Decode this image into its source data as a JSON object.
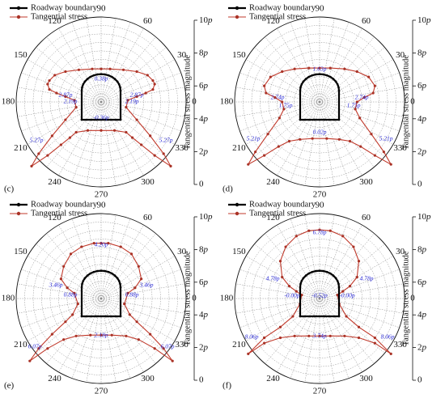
{
  "legend": {
    "roadway": "Roadway boundary",
    "stress": "Tangential stress"
  },
  "angles": [
    "0",
    "30",
    "60",
    "90",
    "120",
    "150",
    "180",
    "210",
    "240",
    "270",
    "300",
    "330"
  ],
  "magnitude_axis": {
    "title": "Tangential stress magnitude",
    "ticks": [
      "0",
      "2p",
      "4p",
      "6p",
      "8p",
      "10p"
    ]
  },
  "colors": {
    "roadway": "#000000",
    "stress": "#c0392b",
    "annotation": "#2b2bd6"
  },
  "chart_data": [
    {
      "type": "polar-line",
      "panel": "(c)",
      "rlim": [
        0,
        10
      ],
      "series": [
        {
          "name": "Roadway boundary",
          "points": []
        },
        {
          "name": "Tangential stress",
          "points": []
        }
      ],
      "annotations": [
        "0.38p",
        "2.87p",
        "2.87p",
        "2.19p",
        "2.19p",
        "-0.36p",
        "5.27p",
        "5.27p"
      ]
    },
    {
      "type": "polar-line",
      "panel": "(d)",
      "rlim": [
        0,
        10
      ],
      "series": [
        {
          "name": "Roadway boundary",
          "points": []
        },
        {
          "name": "Tangential stress",
          "points": []
        }
      ],
      "annotations": [
        "1.63p",
        "2.74p",
        "2.74p",
        "1.75p",
        "1.75p",
        "0.02p",
        "5.21p",
        "5.21p"
      ]
    },
    {
      "type": "polar-line",
      "panel": "(e)",
      "rlim": [
        0,
        10
      ],
      "series": [
        {
          "name": "Roadway boundary",
          "points": []
        },
        {
          "name": "Tangential stress",
          "points": []
        }
      ],
      "annotations": [
        "4.20p",
        "3.46p",
        "3.46p",
        "0.88p",
        "0.88p",
        "2.18p",
        "6.07p",
        "6.07p"
      ]
    },
    {
      "type": "polar-line",
      "panel": "(f)",
      "rlim": [
        0,
        10
      ],
      "series": [
        {
          "name": "Roadway boundary",
          "points": []
        },
        {
          "name": "Tangential stress",
          "points": []
        }
      ],
      "annotations": [
        "6.78p",
        "4.78p",
        "4.78p",
        "-0.00p",
        "-0.00p",
        "-0.52p",
        "3.74p",
        "8.06p",
        "8.06p"
      ]
    }
  ]
}
